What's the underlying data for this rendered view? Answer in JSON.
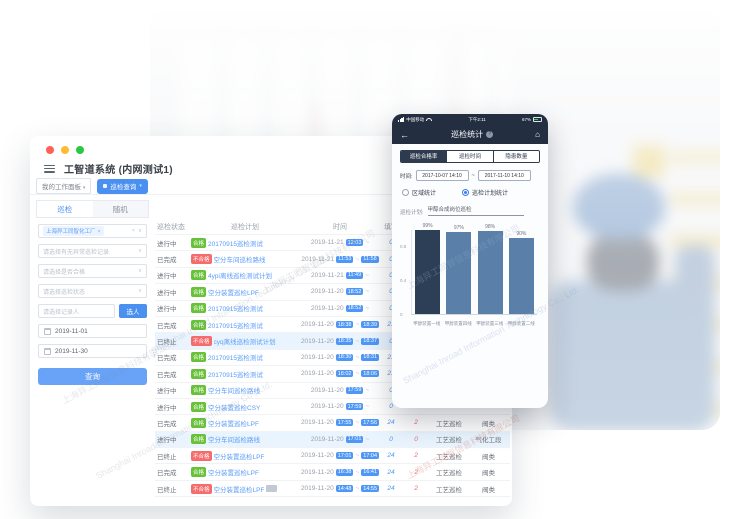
{
  "window": {
    "title": "工智道系统 (内网测试1)",
    "workspace_tab": "我的工作面板",
    "active_tab": "巡检查询"
  },
  "sidebar": {
    "tabs": [
      {
        "label": "巡检"
      },
      {
        "label": "随机"
      }
    ],
    "factory_tag": "上海异工同智化工厂",
    "selects": [
      "请选择有无异常巡检记录",
      "请选择是否合格",
      "请选择巡检状态"
    ],
    "record_placeholder": "请选择记录人",
    "pick_person_button": "选人",
    "date_start": "2019-11-01",
    "date_end": "2019-11-30",
    "query_button": "查询"
  },
  "table": {
    "headers": [
      "巡检状态",
      "巡检计划",
      "时间",
      "填写",
      "",
      "",
      ""
    ],
    "rows": [
      {
        "status": "进行中",
        "badge": "合格",
        "plan": "20170915巡检测试",
        "date": "2019-11-21",
        "start": "12:03",
        "end": "",
        "n1": "0",
        "n2": "",
        "type": "",
        "cat": "",
        "hl": false,
        "extra": false
      },
      {
        "status": "已完成",
        "badge": "不合格",
        "plan": "空分车间巡检路线",
        "date": "2019-11-21",
        "start": "11:53",
        "end": "11:58",
        "n1": "0",
        "n2": "",
        "type": "",
        "cat": "",
        "hl": false,
        "extra": false
      },
      {
        "status": "进行中",
        "badge": "合格",
        "plan": "4ypi离线巡检测试计划",
        "date": "2019-11-21",
        "start": "11:49",
        "end": "",
        "n1": "0",
        "n2": "",
        "type": "",
        "cat": "",
        "hl": false,
        "extra": false
      },
      {
        "status": "进行中",
        "badge": "合格",
        "plan": "空分装置巡检LPF",
        "date": "2019-11-20",
        "start": "18:52",
        "end": "",
        "n1": "0",
        "n2": "",
        "type": "",
        "cat": "",
        "hl": false,
        "extra": false
      },
      {
        "status": "进行中",
        "badge": "合格",
        "plan": "20170915巡检测试",
        "date": "2019-11-20",
        "start": "18:52",
        "end": "",
        "n1": "0",
        "n2": "",
        "type": "",
        "cat": "",
        "hl": false,
        "extra": false
      },
      {
        "status": "已完成",
        "badge": "合格",
        "plan": "20170915巡检测试",
        "date": "2019-11-20",
        "start": "18:38",
        "end": "18:39",
        "n1": "21",
        "n2": "",
        "type": "",
        "cat": "",
        "hl": false,
        "extra": false
      },
      {
        "status": "已终止",
        "badge": "不合格",
        "plan": "cyq离线巡检测试计划",
        "date": "2019-11-20",
        "start": "18:35",
        "end": "18:37",
        "n1": "0",
        "n2": "",
        "type": "",
        "cat": "",
        "hl": true,
        "extra": false
      },
      {
        "status": "已完成",
        "badge": "合格",
        "plan": "20170915巡检测试",
        "date": "2019-11-20",
        "start": "18:30",
        "end": "18:31",
        "n1": "21",
        "n2": "",
        "type": "",
        "cat": "",
        "hl": false,
        "extra": false
      },
      {
        "status": "已完成",
        "badge": "合格",
        "plan": "20170915巡检测试",
        "date": "2019-11-20",
        "start": "18:02",
        "end": "18:06",
        "n1": "21",
        "n2": "",
        "type": "",
        "cat": "",
        "hl": false,
        "extra": false
      },
      {
        "status": "进行中",
        "badge": "合格",
        "plan": "空分车间巡检路线",
        "date": "2019-11-20",
        "start": "17:59",
        "end": "",
        "n1": "0",
        "n2": "",
        "type": "",
        "cat": "",
        "hl": false,
        "extra": false
      },
      {
        "status": "进行中",
        "badge": "合格",
        "plan": "空分装置巡检CSY",
        "date": "2019-11-20",
        "start": "17:59",
        "end": "",
        "n1": "0",
        "n2": "",
        "type": "",
        "cat": "",
        "hl": false,
        "extra": false
      },
      {
        "status": "已完成",
        "badge": "合格",
        "plan": "空分装置巡检LPF",
        "date": "2019-11-20",
        "start": "17:55",
        "end": "17:56",
        "n1": "24",
        "n2": "2",
        "type": "工艺巡检",
        "cat": "阀类",
        "hl": false,
        "extra": false
      },
      {
        "status": "进行中",
        "badge": "合格",
        "plan": "空分车间巡检路线",
        "date": "2019-11-20",
        "start": "17:01",
        "end": "",
        "n1": "0",
        "n2": "0",
        "type": "工艺巡检",
        "cat": "气化工段",
        "hl": true,
        "extra": false
      },
      {
        "status": "已终止",
        "badge": "不合格",
        "plan": "空分装置巡检LPF",
        "date": "2019-11-20",
        "start": "17:01",
        "end": "17:04",
        "n1": "24",
        "n2": "2",
        "type": "工艺巡检",
        "cat": "阀类",
        "hl": false,
        "extra": false
      },
      {
        "status": "已完成",
        "badge": "合格",
        "plan": "空分装置巡检LPF",
        "date": "2019-11-20",
        "start": "16:38",
        "end": "16:41",
        "n1": "24",
        "n2": "2",
        "type": "工艺巡检",
        "cat": "阀类",
        "hl": false,
        "extra": false
      },
      {
        "status": "已终止",
        "badge": "不合格",
        "plan": "空分装置巡检LPF",
        "date": "2019-11-20",
        "start": "14:48",
        "end": "14:55",
        "n1": "24",
        "n2": "2",
        "type": "工艺巡检",
        "cat": "阀类",
        "hl": false,
        "extra": true
      }
    ]
  },
  "phone": {
    "status_bar": {
      "carrier": "中国移动",
      "time": "下午2:11",
      "battery": "67%"
    },
    "nav_title": "巡检统计",
    "segments": [
      {
        "label": "巡检合格率",
        "active": true
      },
      {
        "label": "巡检时间",
        "active": false
      },
      {
        "label": "隐患数量",
        "active": false
      }
    ],
    "time_label": "时间:",
    "time_from": "2017-10-07 14:10",
    "time_separator": "~",
    "time_to": "2017-11-10 14:10",
    "radios": [
      {
        "label": "区域统计",
        "selected": false
      },
      {
        "label": "巡检计划统计",
        "selected": true
      }
    ],
    "plan_label": "巡检计划:",
    "plan_value": "甲醇合成岗位巡检"
  },
  "chart_data": {
    "type": "bar",
    "categories": [
      "甲醇装置一线",
      "甲醇装置四线",
      "甲醇装置三线",
      "甲醇装置二线"
    ],
    "values": [
      99,
      97,
      98,
      90
    ],
    "value_labels": [
      "99%",
      "97%",
      "98%",
      "90%"
    ],
    "title": "",
    "xlabel": "",
    "ylabel": "合格率",
    "ylim": [
      0,
      1
    ],
    "yticks": [
      "0.8",
      "0.4",
      "0"
    ],
    "legend": "none",
    "grid": "off",
    "bar_colors": [
      "#2d3f56",
      "#5a7fa8",
      "#5a7fa8",
      "#5a7fa8"
    ]
  },
  "colors": {
    "accent_blue": "#4a90f0",
    "pass_green": "#67c23a",
    "fail_red": "#f56c6c",
    "time_chip_blue": "#4f97f7",
    "phone_dark": "#232e40",
    "traffic_red": "#ff5f57",
    "traffic_yellow": "#febc2e",
    "traffic_green": "#2ac840"
  },
  "watermark": {
    "zh": "上海异工同智信息科技有限公司",
    "en": "Shanghai Inroad Information Technology Co., Ltd."
  }
}
